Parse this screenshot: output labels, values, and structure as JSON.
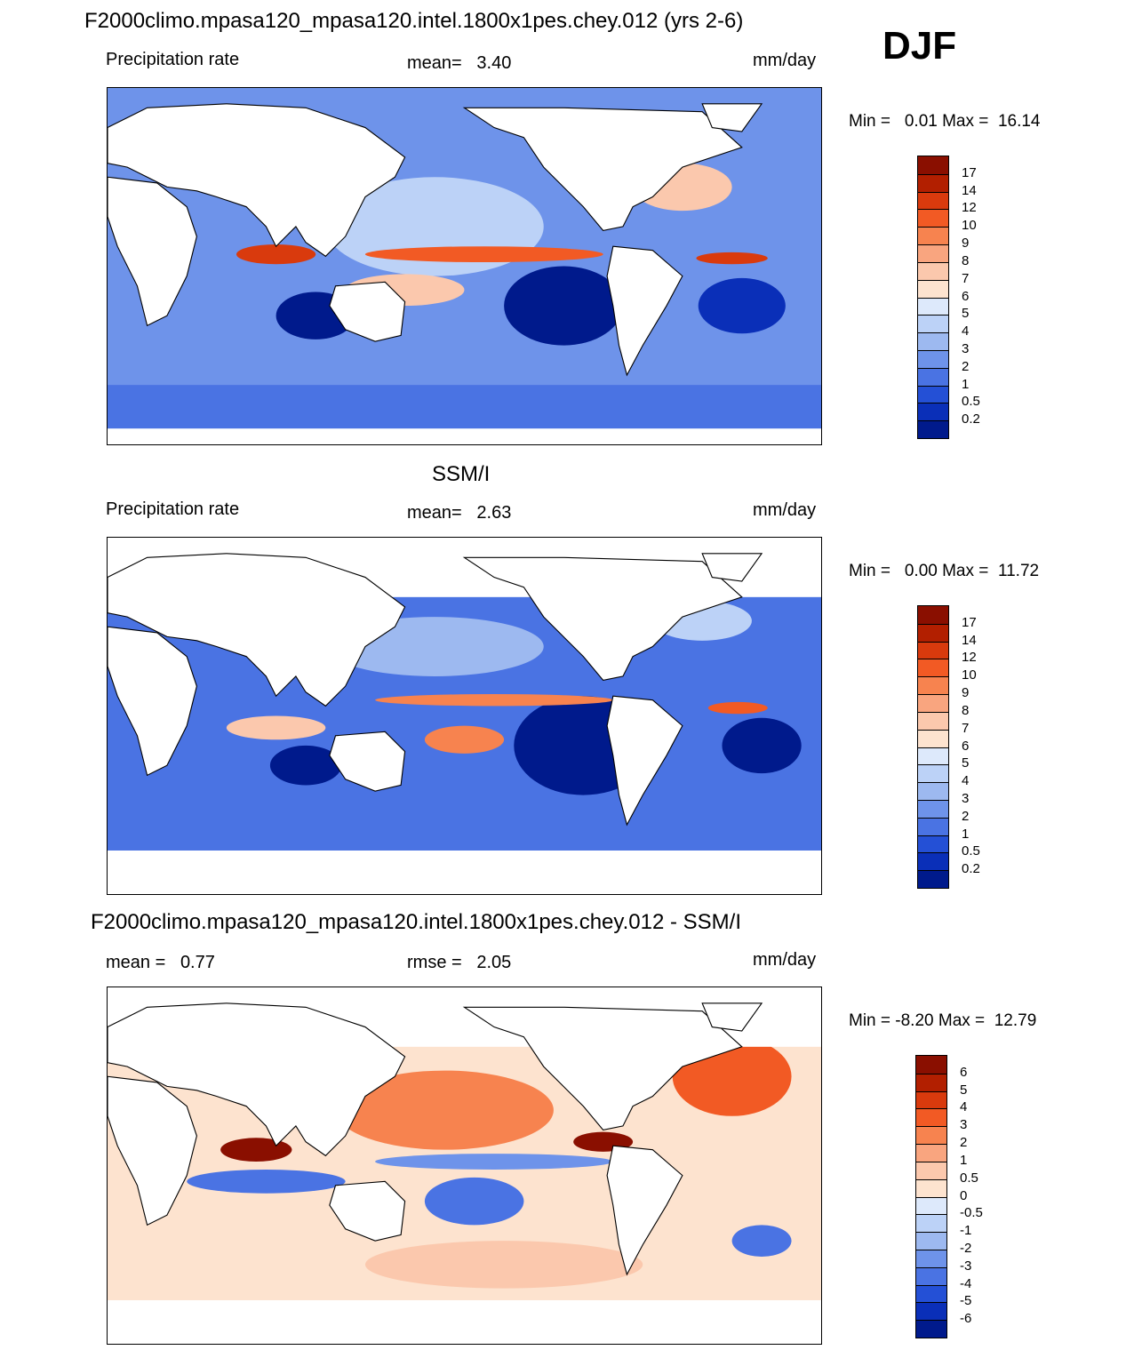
{
  "page": {
    "season": "DJF"
  },
  "colors": {
    "land": "#ffffff",
    "coast": "#000000",
    "pos_max": "#8a0f00",
    "pos_mid": "#e84d1c",
    "pos_low": "#f7b394",
    "neutral_warm": "#fde3cf",
    "neutral_cool": "#d9e7fb",
    "neg_low": "#9db9f0",
    "neg_mid": "#2f5fe0",
    "neg_max": "#001a8c"
  },
  "chart_data": [
    {
      "id": "model",
      "type": "heatmap",
      "title": "F2000climo.mpasa120_mpasa120.intel.1800x1pes.chey.012 (yrs 2-6)",
      "variable": "Precipitation rate",
      "mean_label": "mean=",
      "mean_value": "3.40",
      "units": "mm/day",
      "min_label": "Min =",
      "min_value": "0.01",
      "max_label": "Max =",
      "max_value": "16.14",
      "colorbar": {
        "levels": [
          "17",
          "14",
          "12",
          "10",
          "9",
          "8",
          "7",
          "6",
          "5",
          "4",
          "3",
          "2",
          "1",
          "0.5",
          "0.2"
        ],
        "colors": [
          "#8a0f00",
          "#b21f00",
          "#d93a0d",
          "#f25a24",
          "#f7834f",
          "#f9a57f",
          "#fbc8ad",
          "#fde3cf",
          "#dde9fb",
          "#bcd2f7",
          "#9db9f0",
          "#6e93ea",
          "#4a73e3",
          "#2450d6",
          "#0a2fb8",
          "#001a8c"
        ]
      }
    },
    {
      "id": "obs",
      "type": "heatmap",
      "title": "SSM/I",
      "variable": "Precipitation rate",
      "mean_label": "mean=",
      "mean_value": "2.63",
      "units": "mm/day",
      "min_label": "Min =",
      "min_value": "0.00",
      "max_label": "Max =",
      "max_value": "11.72",
      "colorbar": {
        "levels": [
          "17",
          "14",
          "12",
          "10",
          "9",
          "8",
          "7",
          "6",
          "5",
          "4",
          "3",
          "2",
          "1",
          "0.5",
          "0.2"
        ],
        "colors": [
          "#8a0f00",
          "#b21f00",
          "#d93a0d",
          "#f25a24",
          "#f7834f",
          "#f9a57f",
          "#fbc8ad",
          "#fde3cf",
          "#dde9fb",
          "#bcd2f7",
          "#9db9f0",
          "#6e93ea",
          "#4a73e3",
          "#2450d6",
          "#0a2fb8",
          "#001a8c"
        ]
      }
    },
    {
      "id": "diff",
      "type": "heatmap",
      "title": "F2000climo.mpasa120_mpasa120.intel.1800x1pes.chey.012 - SSM/I",
      "mean_label": "mean =",
      "mean_value": "0.77",
      "rmse_label": "rmse =",
      "rmse_value": "2.05",
      "units": "mm/day",
      "min_label": "Min =",
      "min_value": "-8.20",
      "max_label": "Max =",
      "max_value": "12.79",
      "colorbar": {
        "levels": [
          "6",
          "5",
          "4",
          "3",
          "2",
          "1",
          "0.5",
          "0",
          "-0.5",
          "-1",
          "-2",
          "-3",
          "-4",
          "-5",
          "-6"
        ],
        "colors": [
          "#8a0f00",
          "#b21f00",
          "#d93a0d",
          "#f25a24",
          "#f7834f",
          "#f9a57f",
          "#fbc8ad",
          "#fde3cf",
          "#dde9fb",
          "#bcd2f7",
          "#9db9f0",
          "#6e93ea",
          "#4a73e3",
          "#2450d6",
          "#0a2fb8",
          "#001a8c"
        ]
      }
    }
  ]
}
